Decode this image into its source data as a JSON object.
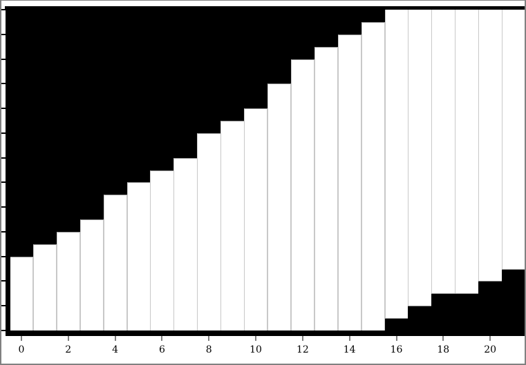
{
  "window": {
    "kind": "plot-window",
    "border_color": "#808080",
    "background": "#ffffff"
  },
  "chart_data": {
    "type": "bar",
    "subtype": "stacked-range-belt",
    "title": "",
    "xlabel": "",
    "ylabel": "",
    "x": [
      0,
      1,
      2,
      3,
      4,
      5,
      6,
      7,
      8,
      9,
      10,
      11,
      12,
      13,
      14,
      15,
      16,
      17,
      18,
      19,
      20,
      21
    ],
    "band_lower": [
      0,
      0,
      0,
      0,
      0,
      0,
      0,
      0,
      0,
      0,
      0,
      0,
      0,
      0,
      0,
      0,
      0.5,
      1,
      1.5,
      1.5,
      2,
      2.5
    ],
    "band_upper": [
      3,
      3.5,
      4,
      4.5,
      5.5,
      6,
      6.5,
      7,
      8,
      8.5,
      9,
      10,
      11,
      11.5,
      12,
      12.5,
      13,
      13,
      13,
      13,
      13,
      13
    ],
    "xlim": [
      -0.5,
      21.5
    ],
    "ylim": [
      0,
      13
    ],
    "x_tick_values": [
      0,
      2,
      4,
      6,
      8,
      10,
      12,
      14,
      16,
      18,
      20
    ],
    "x_tick_labels": [
      "0",
      "2",
      "4",
      "6",
      "8",
      "10",
      "12",
      "14",
      "16",
      "18",
      "20"
    ],
    "y_tick_values": [
      0,
      1,
      2,
      3,
      4,
      5,
      6,
      7,
      8,
      9,
      10,
      11,
      12,
      13
    ],
    "y_tick_labels": [],
    "grid": false,
    "legend": false,
    "colors": {
      "outside_band": "#000000",
      "band": "#ffffff",
      "bar_separator": "#c8c8c8",
      "step_edge": "#909090",
      "axis": "#000000",
      "x_tick": "#808080",
      "y_tick": "#000000",
      "label_text": "#000000",
      "window_border": "#808080"
    }
  }
}
